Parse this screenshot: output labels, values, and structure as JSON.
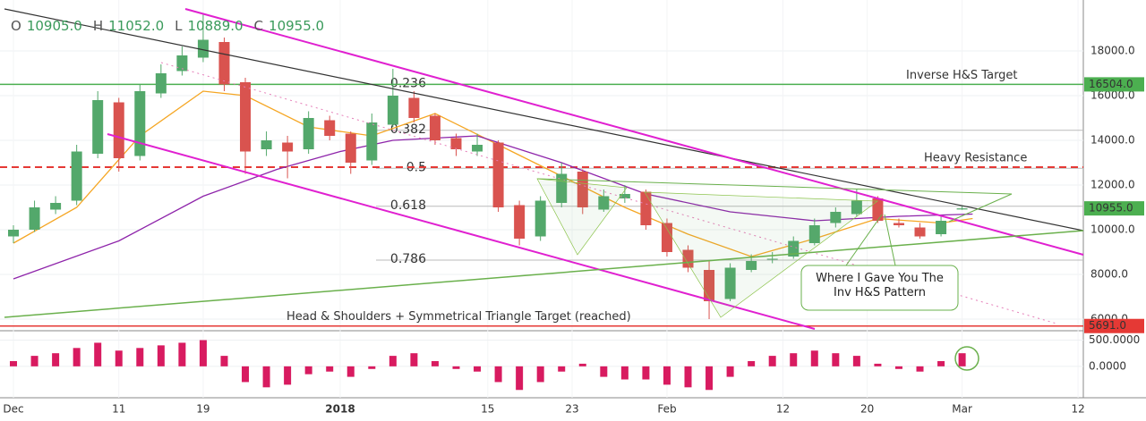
{
  "header": {
    "ohlc": [
      {
        "key": "O",
        "value": "10905.0"
      },
      {
        "key": "H",
        "value": "11052.0"
      },
      {
        "key": "L",
        "value": "10889.0"
      },
      {
        "key": "C",
        "value": "10955.0"
      }
    ]
  },
  "chart_data": {
    "type": "candlestick",
    "x": [
      0,
      2,
      4,
      6,
      8,
      10,
      12,
      14,
      16,
      18,
      20,
      22,
      24,
      26,
      28,
      30,
      32,
      34,
      36,
      38,
      40,
      42,
      44,
      46,
      48,
      50,
      52,
      54,
      56,
      58,
      60,
      62,
      64,
      66,
      68,
      70,
      72,
      74,
      76,
      78,
      80,
      82,
      84,
      86,
      88,
      90
    ],
    "open": [
      9700,
      10000,
      10900,
      11300,
      13400,
      15700,
      13300,
      16100,
      17100,
      17700,
      18400,
      16600,
      13600,
      13900,
      13600,
      14900,
      14300,
      13100,
      14700,
      15900,
      15100,
      14100,
      13500,
      13900,
      11100,
      9700,
      11200,
      12600,
      10900,
      11400,
      11700,
      10300,
      9100,
      8200,
      6900,
      8200,
      8700,
      8800,
      9400,
      10300,
      10700,
      11400,
      10300,
      10100,
      9800,
      10905
    ],
    "high": [
      10200,
      11300,
      11500,
      13800,
      16200,
      15900,
      16500,
      17400,
      18200,
      19700,
      18600,
      16800,
      14400,
      14200,
      15300,
      15100,
      14400,
      15200,
      17200,
      16200,
      15200,
      14300,
      14300,
      14000,
      11300,
      11500,
      13000,
      12700,
      11800,
      12000,
      11800,
      10500,
      9300,
      8600,
      8500,
      8900,
      9000,
      9700,
      10500,
      11000,
      11800,
      11500,
      10500,
      10300,
      10600,
      11052
    ],
    "low": [
      9400,
      9900,
      10700,
      11100,
      13200,
      12600,
      13100,
      15900,
      16900,
      17500,
      16200,
      12500,
      13300,
      12300,
      13400,
      14000,
      12500,
      12900,
      14600,
      14800,
      13800,
      13300,
      13300,
      10800,
      9300,
      9500,
      11000,
      10700,
      10800,
      11200,
      10000,
      8800,
      8100,
      6000,
      6800,
      8100,
      8500,
      8700,
      9300,
      10100,
      10600,
      10300,
      10100,
      9600,
      9700,
      10889
    ],
    "close": [
      10000,
      11000,
      11200,
      13500,
      15800,
      13200,
      16200,
      17000,
      17800,
      18500,
      16500,
      13500,
      14000,
      13500,
      15000,
      14200,
      13000,
      14800,
      16000,
      15000,
      14000,
      13600,
      13800,
      11000,
      9600,
      11300,
      12500,
      11000,
      11500,
      11600,
      10200,
      9000,
      8300,
      6800,
      8300,
      8600,
      8700,
      9500,
      10200,
      10800,
      11300,
      10400,
      10200,
      9700,
      10400,
      10955
    ],
    "up_color": "#53a86b",
    "down_color": "#d9534f",
    "moving_averages": [
      {
        "color": "#f5a623",
        "x": [
          0,
          6,
          12,
          18,
          22,
          28,
          34,
          40,
          46,
          52,
          58,
          64,
          70,
          76,
          82,
          88,
          91
        ],
        "values": [
          9400,
          11000,
          14200,
          16200,
          16000,
          14600,
          14200,
          15200,
          13800,
          12400,
          11000,
          9800,
          8800,
          9600,
          10500,
          10300,
          10500
        ]
      },
      {
        "color": "#8e24aa",
        "x": [
          0,
          10,
          18,
          25,
          31,
          36,
          44,
          52,
          60,
          68,
          76,
          84,
          91
        ],
        "values": [
          7800,
          9500,
          11500,
          12700,
          13500,
          14000,
          14200,
          13000,
          11600,
          10800,
          10400,
          10600,
          10700
        ]
      }
    ],
    "xlim": [
      -0.85,
      101.5
    ],
    "xticks": [
      {
        "value": 0,
        "label": "Dec"
      },
      {
        "value": 10,
        "label": "11"
      },
      {
        "value": 18,
        "label": "19"
      },
      {
        "value": 31,
        "label": "2018"
      },
      {
        "value": 45,
        "label": "15"
      },
      {
        "value": 53,
        "label": "23"
      },
      {
        "value": 62,
        "label": "Feb"
      },
      {
        "value": 73,
        "label": "12"
      },
      {
        "value": 81,
        "label": "20"
      },
      {
        "value": 90,
        "label": "Mar"
      },
      {
        "value": 101,
        "label": "12"
      }
    ],
    "ylim": [
      5560,
      20080
    ],
    "yticks": [
      {
        "value": 6000,
        "label": "6000.0"
      },
      {
        "value": 8000,
        "label": "8000.0"
      },
      {
        "value": 10000,
        "label": "10000.0"
      },
      {
        "value": 12000,
        "label": "12000.0"
      },
      {
        "value": 14000,
        "label": "14000.0"
      },
      {
        "value": 16000,
        "label": "16000.0"
      },
      {
        "value": 18000,
        "label": "18000.0"
      }
    ],
    "fib_levels": [
      {
        "value": 16500,
        "label": "0.236"
      },
      {
        "value": 14450,
        "label": "0.382"
      },
      {
        "value": 12750,
        "label": "0.5"
      },
      {
        "value": 11050,
        "label": "0.618"
      },
      {
        "value": 8640,
        "label": "0.786"
      }
    ],
    "levels": [
      {
        "value": 16504,
        "label": "Inverse H&S Target",
        "color": "#4caf50"
      },
      {
        "value": 12800,
        "label": "Heavy Resistance",
        "color": "#e53935",
        "dashed": true
      },
      {
        "value": 5691,
        "label": "Head & Shoulders + Symmetrical Triangle Target (reached)",
        "color": "#e53935"
      }
    ],
    "price_markers": [
      {
        "value": 16504,
        "label": "16504.0",
        "color": "#4caf50"
      },
      {
        "value": 10955,
        "label": "10955.0",
        "color": "#4caf50"
      },
      {
        "value": 5691,
        "label": "5691.0",
        "color": "#e53935"
      }
    ],
    "callout": "Where I Gave You The Inv H&S Pattern",
    "macd": {
      "color": "#d81b60",
      "values": [
        100,
        200,
        250,
        350,
        450,
        300,
        350,
        400,
        450,
        500,
        200,
        -300,
        -400,
        -350,
        -150,
        -100,
        -200,
        -50,
        200,
        250,
        100,
        -50,
        -100,
        -300,
        -450,
        -300,
        -100,
        50,
        -200,
        -250,
        -250,
        -350,
        -400,
        -450,
        -200,
        100,
        200,
        250,
        300,
        250,
        200,
        50,
        -50,
        -100,
        100,
        250
      ],
      "ylim": [
        -565,
        645
      ],
      "yticks": [
        {
          "value": 500,
          "label": "500.0000"
        },
        {
          "value": 0,
          "label": "0.0000"
        }
      ]
    }
  }
}
